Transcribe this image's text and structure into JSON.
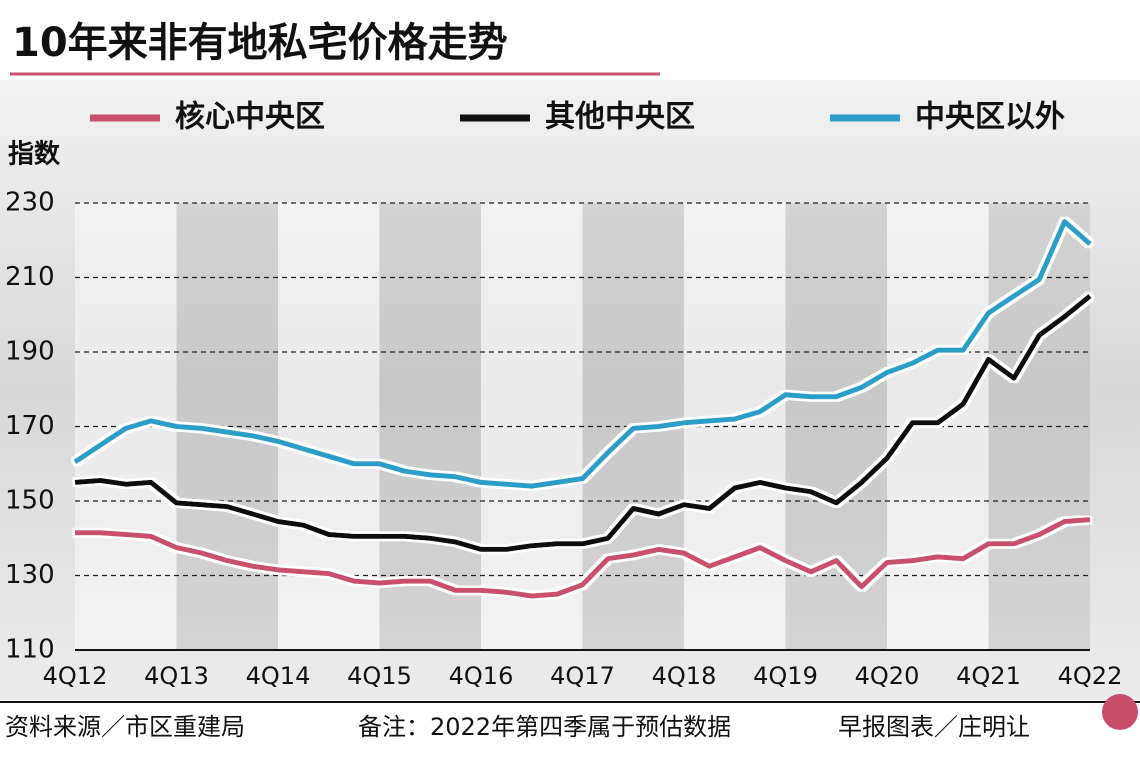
{
  "chart_data": {
    "type": "line",
    "title": "10年来非有地私宅价格走势",
    "y_label": "指数",
    "categories": [
      "4Q12",
      null,
      null,
      null,
      "4Q13",
      null,
      null,
      null,
      "4Q14",
      null,
      null,
      null,
      "4Q15",
      null,
      null,
      null,
      "4Q16",
      null,
      null,
      null,
      "4Q17",
      null,
      null,
      null,
      "4Q18",
      null,
      null,
      null,
      "4Q19",
      null,
      null,
      null,
      "4Q20",
      null,
      null,
      null,
      "4Q21",
      null,
      null,
      null,
      "4Q22"
    ],
    "series": [
      {
        "name": "核心中央区",
        "color": "#c8506e",
        "values": [
          141.5,
          141.5,
          141,
          140.5,
          137.5,
          136,
          134,
          132.5,
          131.5,
          131,
          130.5,
          128.5,
          128,
          128.5,
          128.5,
          126,
          126,
          125.5,
          124.5,
          125,
          127.5,
          134.5,
          135.5,
          137,
          136,
          132.5,
          135,
          137.5,
          134,
          131,
          134,
          127,
          133.5,
          134,
          135,
          134.5,
          138.5,
          138.5,
          141,
          144.5,
          145
        ]
      },
      {
        "name": "其他中央区",
        "color": "#111111",
        "values": [
          155,
          155.5,
          154.5,
          155,
          149.5,
          149,
          148.5,
          146.5,
          144.5,
          143.5,
          141,
          140.5,
          140.5,
          140.5,
          140,
          139,
          137,
          137,
          138,
          138.5,
          138.5,
          140,
          148,
          146.5,
          149,
          148,
          153.5,
          155,
          153.5,
          152.5,
          149.5,
          155,
          161.5,
          171,
          171,
          176,
          188,
          183,
          194.5,
          199.5,
          205
        ]
      },
      {
        "name": "中央区以外",
        "color": "#2a9ec6",
        "values": [
          160.5,
          165,
          169.5,
          171.5,
          170,
          169.5,
          168.5,
          167.5,
          166,
          164,
          162,
          160,
          160,
          158,
          157,
          156.5,
          155,
          154.5,
          154,
          155,
          156,
          163,
          169.5,
          170,
          171,
          171.5,
          172,
          174,
          178.5,
          178,
          178,
          180.5,
          184.5,
          187,
          190.5,
          190.5,
          200.5,
          205,
          209.5,
          225,
          219
        ]
      }
    ],
    "ylim": [
      110,
      230
    ],
    "yticks": [
      110,
      130,
      150,
      170,
      190,
      210,
      230
    ],
    "grid": true,
    "source": "资料来源／市区重建局",
    "note": "备注：2022年第四季属于预估数据",
    "credit": "早报图表／庄明让"
  }
}
